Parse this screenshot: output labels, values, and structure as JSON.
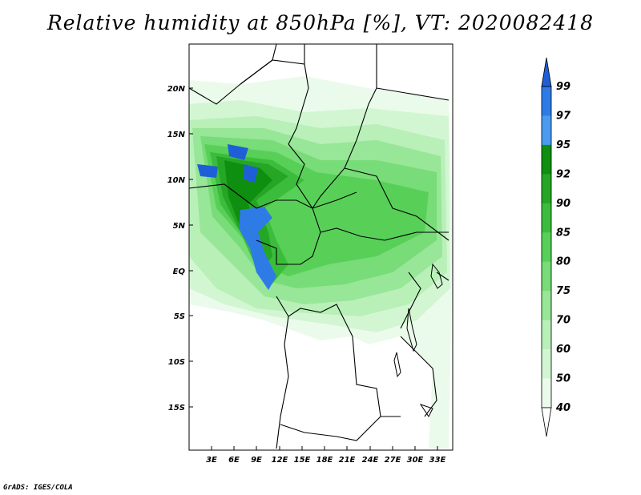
{
  "title": "Relative humidity at 850hPa [%], VT: 2020082418",
  "credit": "GrADS: IGES/COLA",
  "map": {
    "lat_ticks": [
      "20N",
      "15N",
      "10N",
      "5N",
      "EQ",
      "5S",
      "10S",
      "15S"
    ],
    "lon_ticks": [
      "3E",
      "6E",
      "9E",
      "12E",
      "15E",
      "18E",
      "21E",
      "24E",
      "27E",
      "30E",
      "33E"
    ]
  },
  "colorbar": {
    "levels": [
      "99",
      "97",
      "95",
      "92",
      "90",
      "85",
      "80",
      "75",
      "70",
      "60",
      "50",
      "40"
    ],
    "colors": [
      "#1e5fd8",
      "#2f7be6",
      "#4a9bf0",
      "#0f8f0f",
      "#25a625",
      "#3cbc3c",
      "#58d058",
      "#78dc78",
      "#98e698",
      "#b8f0b8",
      "#d2f6d2",
      "#ebfbeb"
    ],
    "arrow_top_color": "#1e5fd8",
    "arrow_bottom_color": "#ffffff"
  },
  "legend_fill_colors": {
    "land_blank": "#ffffff",
    "boundary": "#000000"
  }
}
